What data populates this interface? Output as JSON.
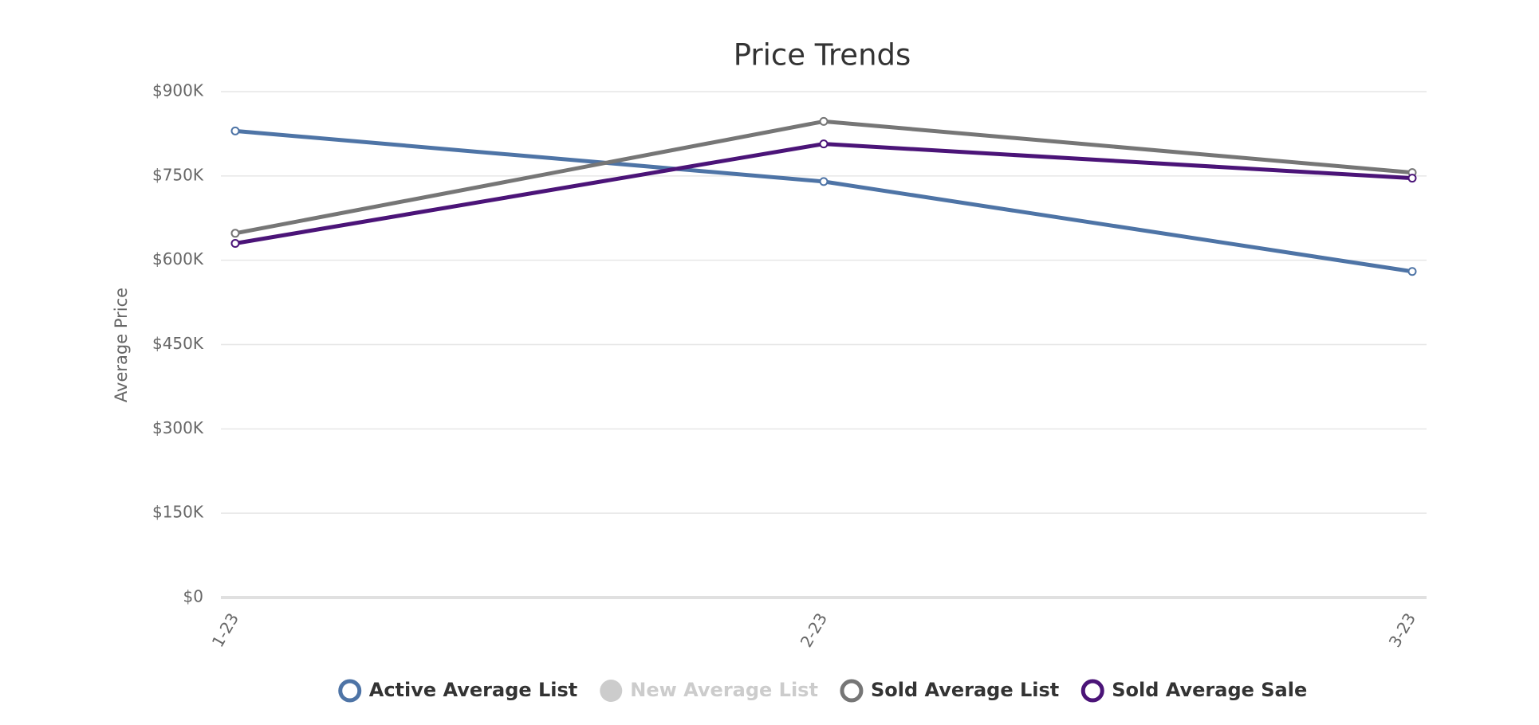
{
  "chart_data": {
    "type": "line",
    "title": "Price Trends",
    "y_label": "Average Price",
    "x": [
      "1-23",
      "2-23",
      "3-23"
    ],
    "series": [
      {
        "name": "Active Average List",
        "color": "#4e74a6",
        "values": [
          830000,
          740000,
          580000
        ]
      },
      {
        "name": "New Average List",
        "color": "#cccccc",
        "visible": false,
        "values": [
          null,
          null,
          null
        ]
      },
      {
        "name": "Sold Average List",
        "color": "#767676",
        "values": [
          648000,
          847000,
          756000
        ]
      },
      {
        "name": "Sold Average Sale",
        "color": "#4b1478",
        "values": [
          630000,
          807000,
          746000
        ]
      }
    ],
    "ylim": [
      0,
      900000
    ],
    "yticks": [
      {
        "value": 0,
        "label": "$0"
      },
      {
        "value": 150000,
        "label": "$150K"
      },
      {
        "value": 300000,
        "label": "$300K"
      },
      {
        "value": 450000,
        "label": "$450K"
      },
      {
        "value": 600000,
        "label": "$600K"
      },
      {
        "value": 750000,
        "label": "$750K"
      },
      {
        "value": 900000,
        "label": "$900K"
      }
    ],
    "grid": true,
    "legend": "bottom"
  }
}
